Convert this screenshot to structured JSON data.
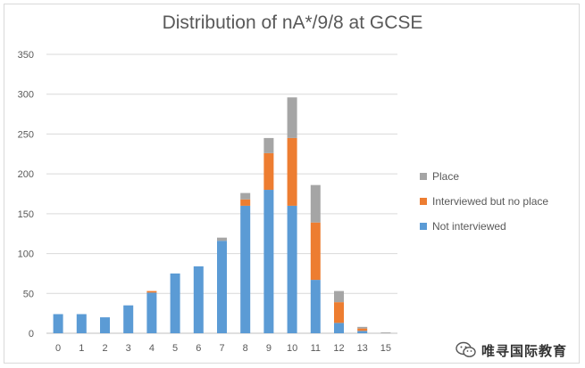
{
  "chart_data": {
    "type": "bar",
    "stacked": true,
    "title": "Distribution of nA*/9/8 at GCSE",
    "xlabel": "",
    "ylabel": "",
    "categories": [
      "0",
      "1",
      "2",
      "3",
      "4",
      "5",
      "6",
      "7",
      "8",
      "9",
      "10",
      "11",
      "12",
      "13",
      "15"
    ],
    "ylim": [
      0,
      350
    ],
    "yticks": [
      0,
      50,
      100,
      150,
      200,
      250,
      300,
      350
    ],
    "grid": true,
    "legend_position": "right",
    "series": [
      {
        "name": "Not interviewed",
        "color": "#5b9bd5",
        "values": [
          24,
          24,
          20,
          35,
          51,
          75,
          84,
          116,
          160,
          180,
          160,
          67,
          13,
          3,
          0
        ]
      },
      {
        "name": "Interviewed but no place",
        "color": "#ed7d31",
        "values": [
          0,
          0,
          0,
          0,
          2,
          0,
          0,
          0,
          8,
          46,
          85,
          72,
          26,
          3,
          0
        ]
      },
      {
        "name": "Place",
        "color": "#a5a5a5",
        "values": [
          0,
          0,
          0,
          0,
          0,
          0,
          0,
          4,
          8,
          19,
          51,
          47,
          14,
          2,
          1
        ]
      }
    ]
  },
  "watermark": {
    "text": "唯寻国际教育",
    "icon": "wechat-icon"
  }
}
